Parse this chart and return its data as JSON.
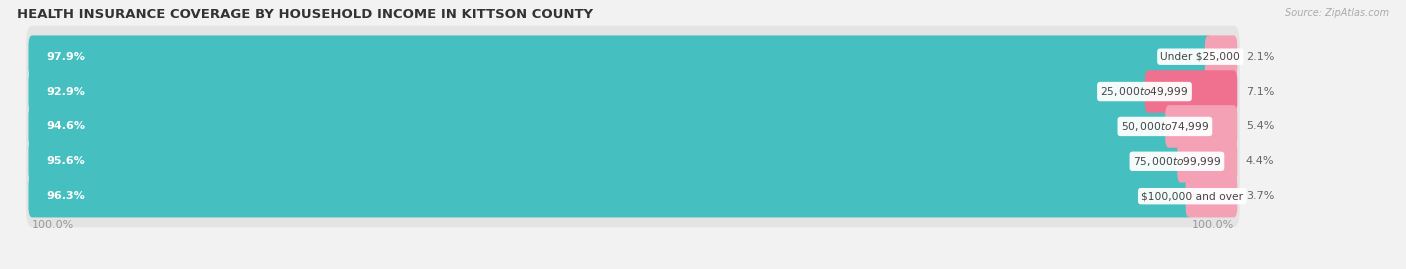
{
  "title": "HEALTH INSURANCE COVERAGE BY HOUSEHOLD INCOME IN KITTSON COUNTY",
  "source": "Source: ZipAtlas.com",
  "categories": [
    "Under $25,000",
    "$25,000 to $49,999",
    "$50,000 to $74,999",
    "$75,000 to $99,999",
    "$100,000 and over"
  ],
  "with_coverage": [
    97.9,
    92.9,
    94.6,
    95.6,
    96.3
  ],
  "without_coverage": [
    2.1,
    7.1,
    5.4,
    4.4,
    3.7
  ],
  "color_with": "#45bfbf",
  "color_with_light": "#7dd4d4",
  "color_without": "#f4a0b5",
  "color_without_2": "#f07090",
  "bg_color": "#f2f2f2",
  "title_fontsize": 9.5,
  "label_fontsize": 8,
  "tick_fontsize": 8,
  "legend_fontsize": 8.5,
  "left_axis_label": "100.0%",
  "right_axis_label": "100.0%"
}
